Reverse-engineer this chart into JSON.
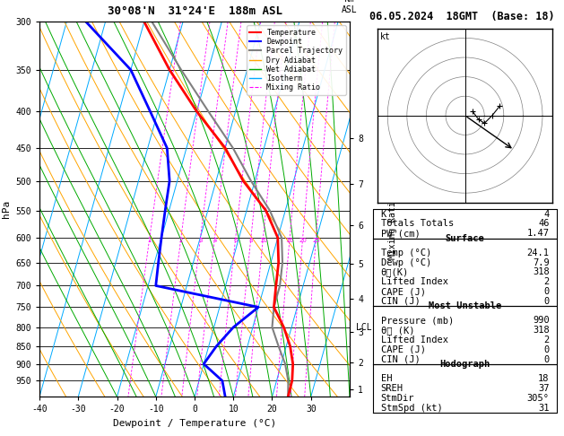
{
  "title_left": "30°08'N  31°24'E  188m ASL",
  "title_right": "06.05.2024  18GMT  (Base: 18)",
  "xlabel": "Dewpoint / Temperature (°C)",
  "ylabel_left": "hPa",
  "pressure_levels": [
    300,
    350,
    400,
    450,
    500,
    550,
    600,
    650,
    700,
    750,
    800,
    850,
    900,
    950
  ],
  "temp_profile": {
    "pressure": [
      300,
      350,
      400,
      450,
      500,
      550,
      600,
      650,
      700,
      750,
      800,
      850,
      900,
      950,
      1000
    ],
    "temp": [
      -40,
      -30,
      -20,
      -10,
      -3,
      5,
      10,
      12,
      13,
      14,
      18,
      21,
      23,
      24,
      24.1
    ]
  },
  "dewp_profile": {
    "pressure": [
      300,
      350,
      400,
      450,
      500,
      550,
      600,
      650,
      700,
      750,
      800,
      850,
      900,
      950,
      1000
    ],
    "dewp": [
      -55,
      -40,
      -32,
      -25,
      -22,
      -21,
      -20,
      -19,
      -18,
      10,
      5,
      2,
      0,
      6,
      7.9
    ]
  },
  "parcel_profile": {
    "pressure": [
      300,
      350,
      400,
      450,
      500,
      550,
      600,
      650,
      700,
      750,
      800,
      850,
      900,
      950,
      1000
    ],
    "temp": [
      -38,
      -27,
      -17,
      -8,
      -1,
      6,
      11,
      13,
      14,
      14,
      15,
      18,
      21,
      23,
      24.1
    ]
  },
  "km_ticks": [
    1,
    2,
    3,
    4,
    5,
    6,
    7,
    8
  ],
  "km_pressures": [
    977,
    895,
    812,
    730,
    652,
    576,
    505,
    436
  ],
  "stats": {
    "K": 4,
    "Totals_Totals": 46,
    "PW_cm": 1.47,
    "Surface_Temp": 24.1,
    "Surface_Dewp": 7.9,
    "Surface_theta_e": 318,
    "Surface_LI": 2,
    "Surface_CAPE": 0,
    "Surface_CIN": 0,
    "MU_Pressure": 990,
    "MU_theta_e": 318,
    "MU_LI": 2,
    "MU_CAPE": 0,
    "MU_CIN": 0,
    "Hodo_EH": 18,
    "Hodo_SREH": 37,
    "Hodo_StmDir": 305,
    "Hodo_StmSpd": 31
  },
  "colors": {
    "temperature": "#ff0000",
    "dewpoint": "#0000ff",
    "parcel": "#808080",
    "dry_adiabat": "#ffa500",
    "wet_adiabat": "#00aa00",
    "isotherm": "#00aaff",
    "mixing_ratio": "#ff00ff"
  },
  "lcl_pressure": 800,
  "skew_factor": 27
}
